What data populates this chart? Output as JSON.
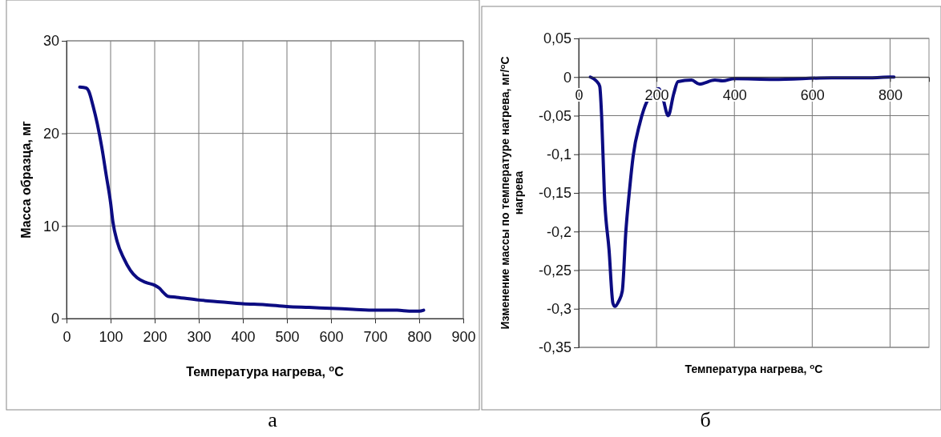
{
  "chart_data": [
    {
      "type": "line",
      "xlabel": "Температура нагрева, $^{o}$C",
      "ylabel": "Масса образца, мг",
      "xlim": [
        0,
        900
      ],
      "xticks": [
        0,
        100,
        200,
        300,
        400,
        500,
        600,
        700,
        800,
        900
      ],
      "ylim": [
        0,
        30
      ],
      "yticks": [
        0,
        10,
        20,
        30
      ],
      "grid": true,
      "marker": "none",
      "line_style": "solid",
      "annotations": [
        "а"
      ],
      "series": [
        {
          "color": "#0c0c82",
          "x": [
            30,
            45,
            50,
            60,
            70,
            80,
            90,
            100,
            105,
            115,
            130,
            145,
            160,
            180,
            200,
            210,
            220,
            230,
            250,
            300,
            350,
            400,
            450,
            500,
            550,
            600,
            650,
            700,
            750,
            780,
            800,
            810
          ],
          "values": [
            25,
            24.9,
            24.6,
            23,
            21,
            18.5,
            15.5,
            12.5,
            10.5,
            8.3,
            6.5,
            5.2,
            4.4,
            3.9,
            3.6,
            3.3,
            2.8,
            2.4,
            2.3,
            2.0,
            1.8,
            1.6,
            1.5,
            1.3,
            1.2,
            1.1,
            1.0,
            0.9,
            0.9,
            0.8,
            0.8,
            0.9
          ]
        }
      ]
    },
    {
      "type": "line",
      "xlabel": "Температура нагрева, $^{o}$C",
      "ylabel": "Изменение массы по температуре нагрева, мг/$^{o}$C нагрева",
      "xlim": [
        0,
        900
      ],
      "xticks": [
        0,
        200,
        400,
        600,
        800
      ],
      "ylim": [
        -0.35,
        0.05
      ],
      "yticks": [
        {
          "value": -0.35,
          "label": "-0,35"
        },
        {
          "value": -0.3,
          "label": "-0,3"
        },
        {
          "value": -0.25,
          "label": "-0,25"
        },
        {
          "value": -0.2,
          "label": "-0,2"
        },
        {
          "value": -0.15,
          "label": "-0,15"
        },
        {
          "value": -0.1,
          "label": "-0,1"
        },
        {
          "value": -0.05,
          "label": "-0,05"
        },
        {
          "value": 0,
          "label": "0"
        },
        {
          "value": 0.05,
          "label": "0,05"
        }
      ],
      "grid": true,
      "marker": "none",
      "line_style": "solid",
      "annotations": [
        "б"
      ],
      "series": [
        {
          "color": "#0c0c82",
          "x": [
            30,
            45,
            54,
            59,
            66,
            78,
            88,
            93,
            103,
            112,
            121,
            131,
            140,
            157,
            176,
            190,
            206,
            215,
            230,
            244,
            255,
            290,
            310,
            350,
            370,
            400,
            500,
            650,
            750,
            800,
            810
          ],
          "values": [
            0,
            -0.005,
            -0.012,
            -0.052,
            -0.152,
            -0.224,
            -0.293,
            -0.297,
            -0.29,
            -0.277,
            -0.201,
            -0.144,
            -0.102,
            -0.06,
            -0.031,
            -0.022,
            -0.015,
            -0.025,
            -0.05,
            -0.022,
            -0.006,
            -0.004,
            -0.009,
            -0.004,
            -0.005,
            -0.002,
            -0.003,
            -0.001,
            -0.001,
            0,
            0
          ]
        }
      ]
    }
  ]
}
